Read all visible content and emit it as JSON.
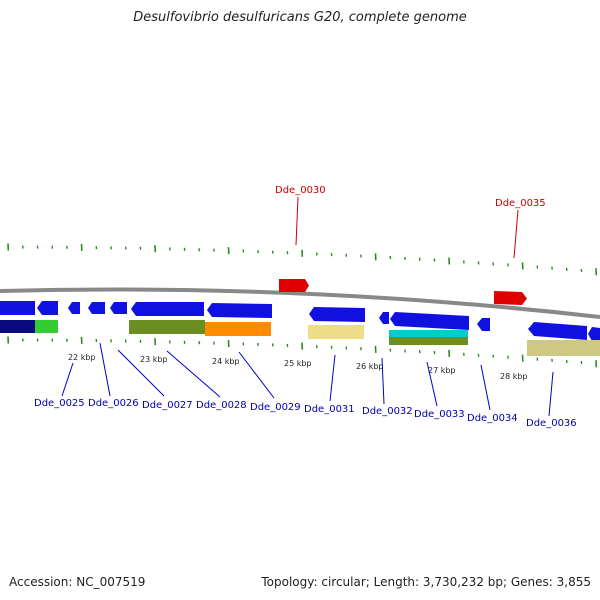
{
  "title": "Desulfovibrio desulfuricans G20, complete genome",
  "footer": {
    "accession": "Accession: NC_007519",
    "topology": "Topology: circular; Length: 3,730,232 bp; Genes: 3,855"
  },
  "colors": {
    "backbone": "#7a7a7a",
    "forward_gene": "#d10000",
    "reverse_gene": "#0000cc",
    "tick": "#2e8b22",
    "label_forward": "#cc0000",
    "label_reverse": "#0000aa"
  },
  "scale_ticks_kbp": [
    "22 kbp",
    "23 kbp",
    "24 kbp",
    "25 kbp",
    "26 kbp",
    "27 kbp",
    "28 kbp"
  ],
  "forward_labels": [
    "Dde_0030",
    "Dde_0035"
  ],
  "reverse_labels": [
    "Dde_0025",
    "Dde_0026",
    "Dde_0027",
    "Dde_0028",
    "Dde_0029",
    "Dde_0031",
    "Dde_0032",
    "Dde_0033",
    "Dde_0034",
    "Dde_0036"
  ]
}
